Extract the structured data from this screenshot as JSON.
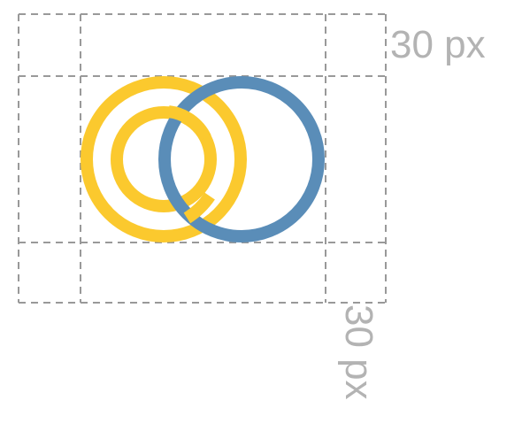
{
  "labels": {
    "top_spacing": "30 px",
    "side_spacing": "30 px"
  },
  "colors": {
    "guide": "#999999",
    "yellow": "#FBC92E",
    "blue": "#5A8DB8",
    "label": "#b3b3b3"
  }
}
